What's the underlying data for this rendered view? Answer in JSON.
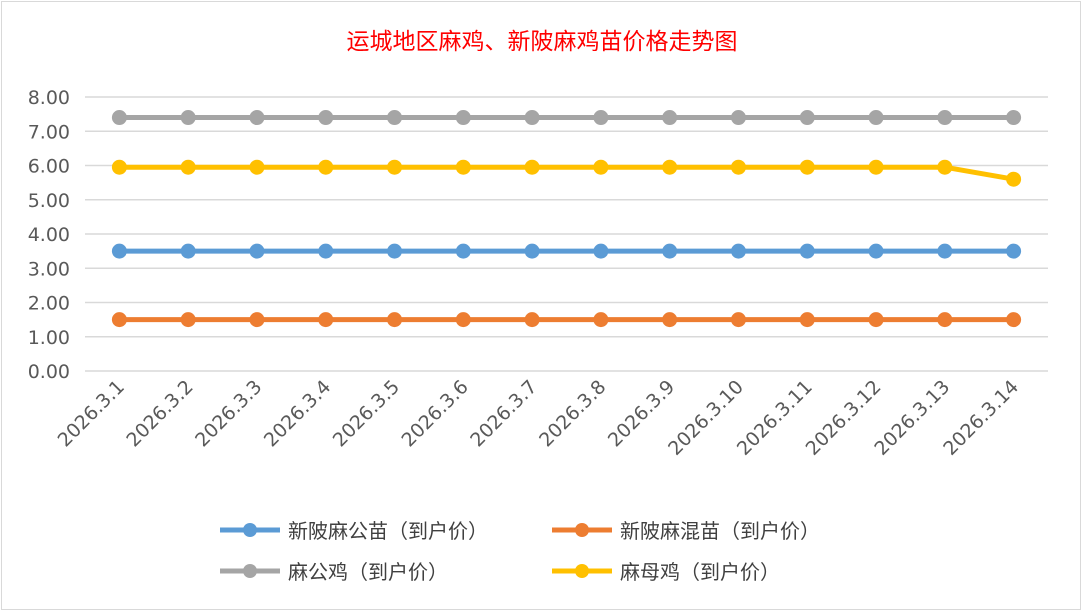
{
  "chart_data": {
    "type": "line",
    "title": "运城地区麻鸡、新陂麻鸡苗价格走势图",
    "categories": [
      "2026.3.1",
      "2026.3.2",
      "2026.3.3",
      "2026.3.4",
      "2026.3.5",
      "2026.3.6",
      "2026.3.7",
      "2026.3.8",
      "2026.3.9",
      "2026.3.10",
      "2026.3.11",
      "2026.3.12",
      "2026.3.13",
      "2026.3.14"
    ],
    "ylim": [
      0,
      8
    ],
    "yticks": [
      "0.00",
      "1.00",
      "2.00",
      "3.00",
      "4.00",
      "5.00",
      "6.00",
      "7.00",
      "8.00"
    ],
    "grid": true,
    "legend_position": "bottom",
    "series": [
      {
        "name": "新陂麻公苗（到户价）",
        "color": "#5b9bd5",
        "values": [
          3.5,
          3.5,
          3.5,
          3.5,
          3.5,
          3.5,
          3.5,
          3.5,
          3.5,
          3.5,
          3.5,
          3.5,
          3.5,
          3.5
        ]
      },
      {
        "name": "新陂麻混苗（到户价）",
        "color": "#ed7d31",
        "values": [
          1.5,
          1.5,
          1.5,
          1.5,
          1.5,
          1.5,
          1.5,
          1.5,
          1.5,
          1.5,
          1.5,
          1.5,
          1.5,
          1.5
        ]
      },
      {
        "name": "麻公鸡（到户价）",
        "color": "#a5a5a5",
        "values": [
          7.4,
          7.4,
          7.4,
          7.4,
          7.4,
          7.4,
          7.4,
          7.4,
          7.4,
          7.4,
          7.4,
          7.4,
          7.4,
          7.4
        ]
      },
      {
        "name": "麻母鸡（到户价）",
        "color": "#ffc000",
        "values": [
          5.95,
          5.95,
          5.95,
          5.95,
          5.95,
          5.95,
          5.95,
          5.95,
          5.95,
          5.95,
          5.95,
          5.95,
          5.95,
          5.6
        ]
      }
    ]
  }
}
